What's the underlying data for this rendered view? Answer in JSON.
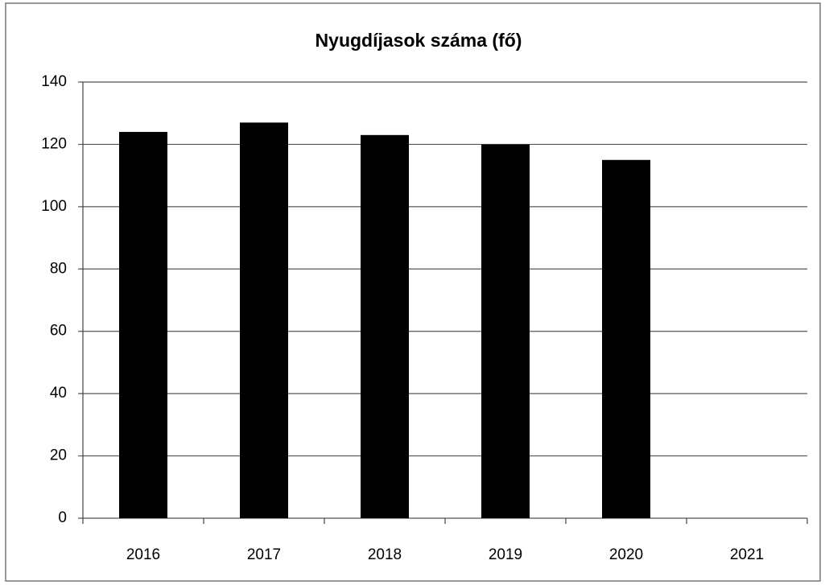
{
  "chart_data": {
    "type": "bar",
    "title": "Nyugdíjasok száma (fő)",
    "categories": [
      "2016",
      "2017",
      "2018",
      "2019",
      "2020",
      "2021"
    ],
    "values": [
      124,
      127,
      123,
      120,
      115,
      null
    ],
    "color": "#000000",
    "ylim": [
      0,
      140
    ],
    "yticks": [
      0,
      20,
      40,
      60,
      80,
      100,
      120,
      140
    ],
    "grid": true
  }
}
